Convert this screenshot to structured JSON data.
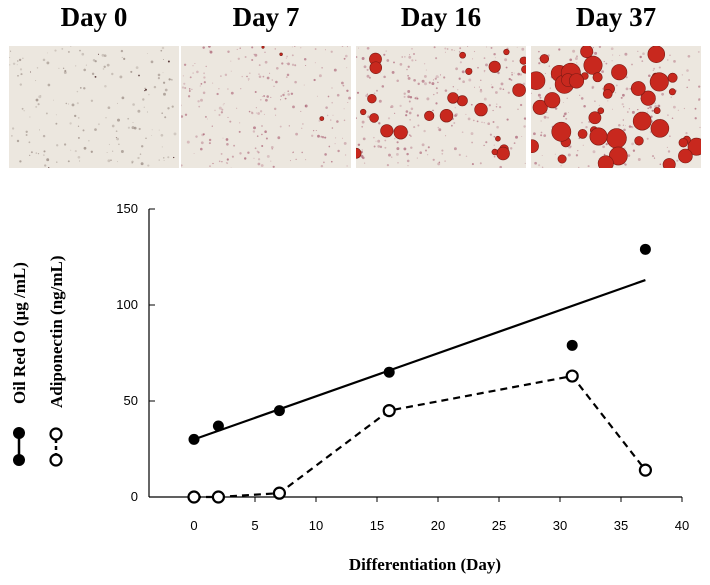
{
  "panels": [
    {
      "label": "Day 0"
    },
    {
      "label": "Day 7"
    },
    {
      "label": "Day 16"
    },
    {
      "label": "Day 37"
    }
  ],
  "chart_data": {
    "type": "line",
    "xlabel": "Differentiation (Day)",
    "ylabel_parts": [
      "Oil Red O (μg /mL)",
      "Adiponectin (ng/mL)"
    ],
    "xlim": [
      0,
      40
    ],
    "ylim": [
      0,
      150
    ],
    "xticks": [
      0,
      5,
      10,
      15,
      20,
      25,
      30,
      35,
      40
    ],
    "yticks": [
      0,
      50,
      100,
      150
    ],
    "grid": false,
    "series": [
      {
        "name": "Oil Red O (μg /mL)",
        "marker": "filled-circle",
        "x": [
          0,
          2,
          7,
          16,
          31,
          37
        ],
        "y": [
          30,
          37,
          45,
          65,
          79,
          129
        ],
        "trendline": {
          "style": "solid",
          "x": [
            0,
            37
          ],
          "y": [
            30,
            113
          ]
        }
      },
      {
        "name": "Adiponectin (ng/mL)",
        "marker": "open-circle",
        "line": "dashed",
        "x": [
          0,
          2,
          7,
          16,
          31,
          37
        ],
        "y": [
          0,
          0,
          2,
          45,
          63,
          14
        ]
      }
    ]
  },
  "colors": {
    "stain_red": "#c8281e",
    "tissue_bg": "#ece7df",
    "axis": "#000000"
  }
}
